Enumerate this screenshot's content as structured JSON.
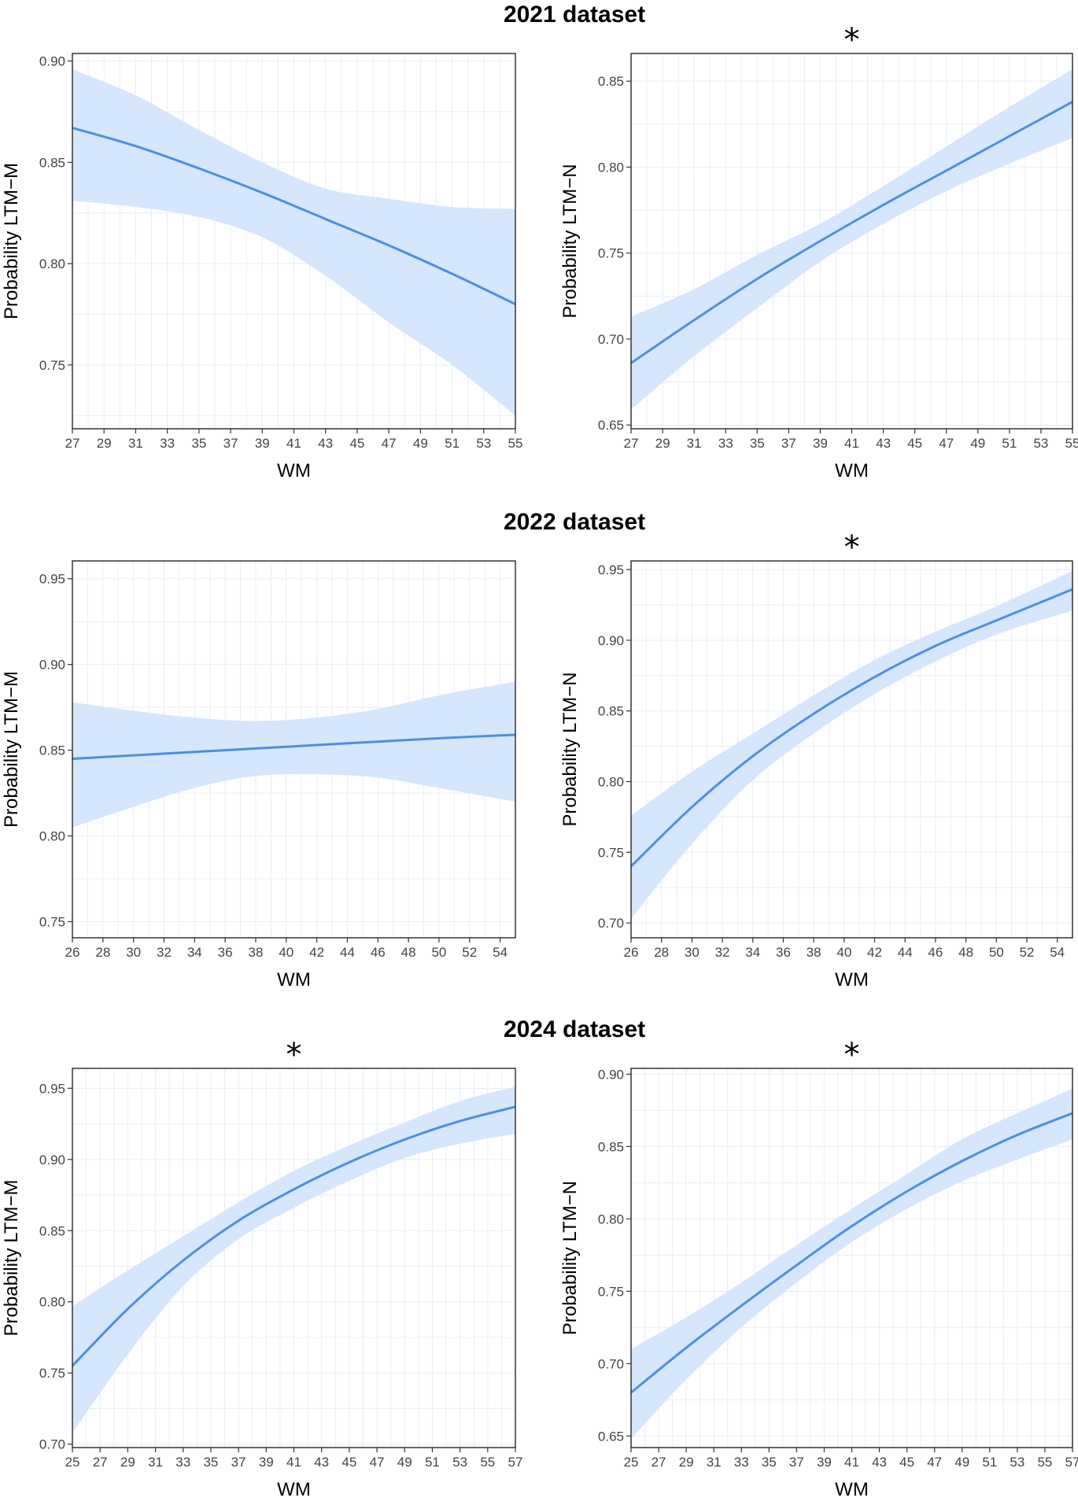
{
  "figure": {
    "section_titles": [
      "2021 dataset",
      "2022 dataset",
      "2024 dataset"
    ],
    "line_color": "#4a90e2",
    "band_color": "#d6e6fd",
    "grid_color": "#e8eef3"
  },
  "chart_data": [
    {
      "type": "line",
      "dataset": "2021 dataset",
      "significant": false,
      "significance_label": "",
      "xlabel": "WM",
      "ylabel": "Probability LTM−M",
      "xlim": [
        27,
        55
      ],
      "ylim": [
        0.7185,
        0.9037
      ],
      "xticks": [
        27,
        29,
        31,
        33,
        35,
        37,
        39,
        41,
        43,
        45,
        47,
        49,
        51,
        53,
        55
      ],
      "yticks": [
        0.75,
        0.8,
        0.85,
        0.9
      ],
      "ytick_labels": [
        "0.75",
        "0.80",
        "0.85",
        "0.90"
      ],
      "x": [
        27,
        31,
        35,
        39,
        43,
        47,
        51,
        55
      ],
      "fit": [
        0.867,
        0.858,
        0.847,
        0.835,
        0.822,
        0.809,
        0.795,
        0.78
      ],
      "lower": [
        0.831,
        0.828,
        0.823,
        0.813,
        0.794,
        0.771,
        0.75,
        0.725
      ],
      "upper": [
        0.896,
        0.883,
        0.866,
        0.85,
        0.837,
        0.832,
        0.828,
        0.827
      ]
    },
    {
      "type": "line",
      "dataset": "2021 dataset",
      "significant": true,
      "significance_label": "*",
      "xlabel": "WM",
      "ylabel": "Probability LTM−N",
      "xlim": [
        27,
        55
      ],
      "ylim": [
        0.6478,
        0.8661
      ],
      "xticks": [
        27,
        29,
        31,
        33,
        35,
        37,
        39,
        41,
        43,
        45,
        47,
        49,
        51,
        53,
        55
      ],
      "yticks": [
        0.65,
        0.7,
        0.75,
        0.8,
        0.85
      ],
      "ytick_labels": [
        "0.65",
        "0.70",
        "0.75",
        "0.80",
        "0.85"
      ],
      "x": [
        27,
        31,
        35,
        39,
        43,
        47,
        51,
        55
      ],
      "fit": [
        0.686,
        0.711,
        0.735,
        0.757,
        0.778,
        0.798,
        0.818,
        0.838
      ],
      "lower": [
        0.659,
        0.69,
        0.718,
        0.745,
        0.767,
        0.786,
        0.802,
        0.817
      ],
      "upper": [
        0.713,
        0.729,
        0.749,
        0.767,
        0.789,
        0.812,
        0.835,
        0.857
      ]
    },
    {
      "type": "line",
      "dataset": "2022 dataset",
      "significant": false,
      "significance_label": "",
      "xlabel": "WM",
      "ylabel": "Probability LTM−M",
      "xlim": [
        26,
        55
      ],
      "ylim": [
        0.7406,
        0.9604
      ],
      "xticks": [
        26,
        28,
        30,
        32,
        34,
        36,
        38,
        40,
        42,
        44,
        46,
        48,
        50,
        52,
        54
      ],
      "yticks": [
        0.75,
        0.8,
        0.85,
        0.9,
        0.95
      ],
      "ytick_labels": [
        "0.75",
        "0.80",
        "0.85",
        "0.90",
        "0.95"
      ],
      "x": [
        26,
        30,
        34,
        38,
        42,
        46,
        50,
        55
      ],
      "fit": [
        0.845,
        0.847,
        0.849,
        0.851,
        0.853,
        0.855,
        0.857,
        0.859
      ],
      "lower": [
        0.805,
        0.817,
        0.828,
        0.835,
        0.836,
        0.834,
        0.828,
        0.82
      ],
      "upper": [
        0.878,
        0.873,
        0.869,
        0.867,
        0.869,
        0.874,
        0.882,
        0.89
      ]
    },
    {
      "type": "line",
      "dataset": "2022 dataset",
      "significant": true,
      "significance_label": "*",
      "xlabel": "WM",
      "ylabel": "Probability LTM−N",
      "xlim": [
        26,
        55
      ],
      "ylim": [
        0.6895,
        0.9561
      ],
      "xticks": [
        26,
        28,
        30,
        32,
        34,
        36,
        38,
        40,
        42,
        44,
        46,
        48,
        50,
        52,
        54
      ],
      "yticks": [
        0.7,
        0.75,
        0.8,
        0.85,
        0.9,
        0.95
      ],
      "ytick_labels": [
        "0.70",
        "0.75",
        "0.80",
        "0.85",
        "0.90",
        "0.95"
      ],
      "x": [
        26,
        30,
        34,
        38,
        42,
        46,
        50,
        55
      ],
      "fit": [
        0.74,
        0.782,
        0.818,
        0.848,
        0.874,
        0.896,
        0.914,
        0.936
      ],
      "lower": [
        0.703,
        0.756,
        0.801,
        0.834,
        0.862,
        0.885,
        0.904,
        0.921
      ],
      "upper": [
        0.776,
        0.807,
        0.834,
        0.861,
        0.886,
        0.906,
        0.924,
        0.949
      ]
    },
    {
      "type": "line",
      "dataset": "2024 dataset",
      "significant": true,
      "significance_label": "*",
      "xlabel": "WM",
      "ylabel": "Probability LTM−M",
      "xlim": [
        25,
        57
      ],
      "ylim": [
        0.6976,
        0.964
      ],
      "xticks": [
        25,
        27,
        29,
        31,
        33,
        35,
        37,
        39,
        41,
        43,
        45,
        47,
        49,
        51,
        53,
        55,
        57
      ],
      "yticks": [
        0.7,
        0.75,
        0.8,
        0.85,
        0.9,
        0.95
      ],
      "ytick_labels": [
        "0.70",
        "0.75",
        "0.80",
        "0.85",
        "0.90",
        "0.95"
      ],
      "x": [
        25,
        29,
        33,
        37,
        41,
        45,
        49,
        53,
        57
      ],
      "fit": [
        0.755,
        0.795,
        0.829,
        0.857,
        0.879,
        0.898,
        0.914,
        0.927,
        0.937
      ],
      "lower": [
        0.708,
        0.763,
        0.811,
        0.844,
        0.866,
        0.885,
        0.901,
        0.911,
        0.918
      ],
      "upper": [
        0.797,
        0.822,
        0.846,
        0.87,
        0.892,
        0.91,
        0.926,
        0.941,
        0.951
      ]
    },
    {
      "type": "line",
      "dataset": "2024 dataset",
      "significant": true,
      "significance_label": "*",
      "xlabel": "WM",
      "ylabel": "Probability LTM−N",
      "xlim": [
        25,
        57
      ],
      "ylim": [
        0.642,
        0.904
      ],
      "xticks": [
        25,
        27,
        29,
        31,
        33,
        35,
        37,
        39,
        41,
        43,
        45,
        47,
        49,
        51,
        53,
        55,
        57
      ],
      "yticks": [
        0.65,
        0.7,
        0.75,
        0.8,
        0.85,
        0.9
      ],
      "ytick_labels": [
        "0.65",
        "0.70",
        "0.75",
        "0.80",
        "0.85",
        "0.90"
      ],
      "x": [
        25,
        29,
        33,
        37,
        41,
        45,
        49,
        53,
        57
      ],
      "fit": [
        0.68,
        0.711,
        0.74,
        0.768,
        0.795,
        0.819,
        0.84,
        0.858,
        0.873
      ],
      "lower": [
        0.648,
        0.689,
        0.725,
        0.756,
        0.784,
        0.807,
        0.826,
        0.841,
        0.855
      ],
      "upper": [
        0.71,
        0.732,
        0.756,
        0.782,
        0.807,
        0.831,
        0.855,
        0.873,
        0.89
      ]
    }
  ]
}
